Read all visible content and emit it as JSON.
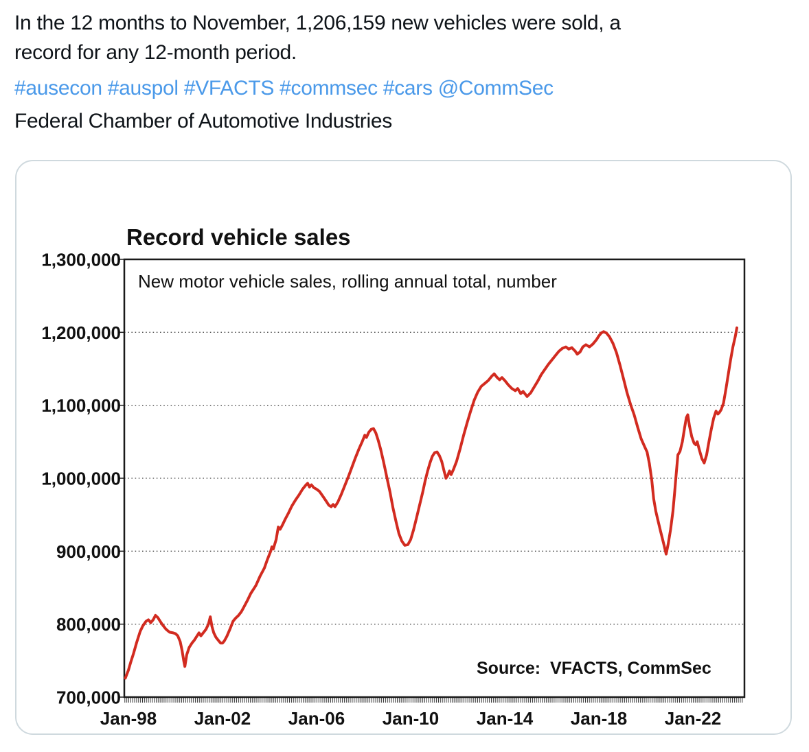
{
  "tweet": {
    "text_color": "#0f1419",
    "link_color": "#4a99e9",
    "lines": [
      "In the 12 months to November, 1,206,159 new vehicles were sold, a",
      "record for any 12-month period.",
      "Federal Chamber of Automotive Industries"
    ],
    "hashtags": [
      "#ausecon",
      "#auspol",
      "#VFACTS",
      "#commsec",
      "#cars",
      "@CommSec"
    ]
  },
  "chart_data": {
    "type": "line",
    "title": "Record vehicle sales",
    "subtitle": "New motor vehicle sales, rolling annual total, number",
    "source": "Source:  VFACTS, CommSec",
    "line_color": "#d22b20",
    "frame_color": "#1a1a1a",
    "grid": "horizontal dotted",
    "legend": "none",
    "ylim": [
      700000,
      1300000
    ],
    "xlim_years": [
      1997.84,
      2023.96
    ],
    "y_ticks": [
      {
        "label": "700,000",
        "value": 700000
      },
      {
        "label": "800,000",
        "value": 800000
      },
      {
        "label": "900,000",
        "value": 900000
      },
      {
        "label": "1,000,000",
        "value": 1000000
      },
      {
        "label": "1,100,000",
        "value": 1100000
      },
      {
        "label": "1,200,000",
        "value": 1200000
      },
      {
        "label": "1,300,000",
        "value": 1300000
      }
    ],
    "x_ticks": [
      {
        "label": "Jan-98",
        "t": 1998
      },
      {
        "label": "Jan-02",
        "t": 2002
      },
      {
        "label": "Jan-06",
        "t": 2006
      },
      {
        "label": "Jan-10",
        "t": 2010
      },
      {
        "label": "Jan-14",
        "t": 2014
      },
      {
        "label": "Jan-18",
        "t": 2018
      },
      {
        "label": "Jan-22",
        "t": 2022
      }
    ],
    "series": [
      {
        "name": "New motor vehicle sales, rolling annual total",
        "final_value": 1206159,
        "points": [
          [
            1997.87,
            726000
          ],
          [
            1998.0,
            737000
          ],
          [
            1998.1,
            748000
          ],
          [
            1998.22,
            760000
          ],
          [
            1998.35,
            775000
          ],
          [
            1998.5,
            790000
          ],
          [
            1998.62,
            798000
          ],
          [
            1998.75,
            804000
          ],
          [
            1998.85,
            806000
          ],
          [
            1998.95,
            802000
          ],
          [
            1999.05,
            806000
          ],
          [
            1999.15,
            812000
          ],
          [
            1999.25,
            809000
          ],
          [
            1999.35,
            804000
          ],
          [
            1999.45,
            799000
          ],
          [
            1999.6,
            793000
          ],
          [
            1999.75,
            789000
          ],
          [
            1999.9,
            788000
          ],
          [
            2000.0,
            787000
          ],
          [
            2000.1,
            784000
          ],
          [
            2000.2,
            776000
          ],
          [
            2000.28,
            764000
          ],
          [
            2000.35,
            750000
          ],
          [
            2000.4,
            742000
          ],
          [
            2000.48,
            758000
          ],
          [
            2000.58,
            768000
          ],
          [
            2000.7,
            774000
          ],
          [
            2000.8,
            778000
          ],
          [
            2000.92,
            784000
          ],
          [
            2001.0,
            788000
          ],
          [
            2001.08,
            784000
          ],
          [
            2001.18,
            788000
          ],
          [
            2001.3,
            793000
          ],
          [
            2001.4,
            800000
          ],
          [
            2001.48,
            810000
          ],
          [
            2001.55,
            797000
          ],
          [
            2001.63,
            788000
          ],
          [
            2001.72,
            782000
          ],
          [
            2001.82,
            778000
          ],
          [
            2001.92,
            774000
          ],
          [
            2002.0,
            774000
          ],
          [
            2002.08,
            777000
          ],
          [
            2002.18,
            783000
          ],
          [
            2002.3,
            792000
          ],
          [
            2002.45,
            804000
          ],
          [
            2002.55,
            808000
          ],
          [
            2002.68,
            812000
          ],
          [
            2002.8,
            817000
          ],
          [
            2002.92,
            824000
          ],
          [
            2003.05,
            832000
          ],
          [
            2003.2,
            842000
          ],
          [
            2003.42,
            853000
          ],
          [
            2003.6,
            866000
          ],
          [
            2003.78,
            877000
          ],
          [
            2003.9,
            888000
          ],
          [
            2004.05,
            900000
          ],
          [
            2004.1,
            906000
          ],
          [
            2004.16,
            903000
          ],
          [
            2004.28,
            916000
          ],
          [
            2004.37,
            933000
          ],
          [
            2004.45,
            930000
          ],
          [
            2004.55,
            936000
          ],
          [
            2004.67,
            944000
          ],
          [
            2004.8,
            952000
          ],
          [
            2004.95,
            962000
          ],
          [
            2005.1,
            970000
          ],
          [
            2005.25,
            977000
          ],
          [
            2005.4,
            985000
          ],
          [
            2005.55,
            991000
          ],
          [
            2005.62,
            993000
          ],
          [
            2005.7,
            988000
          ],
          [
            2005.78,
            991000
          ],
          [
            2005.88,
            987000
          ],
          [
            2006.0,
            985000
          ],
          [
            2006.12,
            982000
          ],
          [
            2006.25,
            976000
          ],
          [
            2006.4,
            969000
          ],
          [
            2006.52,
            963000
          ],
          [
            2006.62,
            961000
          ],
          [
            2006.7,
            964000
          ],
          [
            2006.78,
            961000
          ],
          [
            2006.9,
            967000
          ],
          [
            2007.05,
            978000
          ],
          [
            2007.2,
            990000
          ],
          [
            2007.35,
            1002000
          ],
          [
            2007.5,
            1015000
          ],
          [
            2007.65,
            1028000
          ],
          [
            2007.8,
            1040000
          ],
          [
            2007.95,
            1051000
          ],
          [
            2008.05,
            1059000
          ],
          [
            2008.12,
            1056000
          ],
          [
            2008.22,
            1063000
          ],
          [
            2008.32,
            1067000
          ],
          [
            2008.42,
            1068000
          ],
          [
            2008.52,
            1062000
          ],
          [
            2008.62,
            1052000
          ],
          [
            2008.72,
            1040000
          ],
          [
            2008.85,
            1022000
          ],
          [
            2009.0,
            999000
          ],
          [
            2009.12,
            981000
          ],
          [
            2009.25,
            959000
          ],
          [
            2009.38,
            940000
          ],
          [
            2009.5,
            924000
          ],
          [
            2009.62,
            914000
          ],
          [
            2009.75,
            908000
          ],
          [
            2009.88,
            909000
          ],
          [
            2010.0,
            916000
          ],
          [
            2010.12,
            929000
          ],
          [
            2010.25,
            946000
          ],
          [
            2010.4,
            966000
          ],
          [
            2010.52,
            982000
          ],
          [
            2010.62,
            997000
          ],
          [
            2010.72,
            1010000
          ],
          [
            2010.82,
            1021000
          ],
          [
            2010.92,
            1030000
          ],
          [
            2011.02,
            1035000
          ],
          [
            2011.12,
            1036000
          ],
          [
            2011.22,
            1031000
          ],
          [
            2011.32,
            1023000
          ],
          [
            2011.42,
            1010000
          ],
          [
            2011.5,
            1000000
          ],
          [
            2011.58,
            1004000
          ],
          [
            2011.65,
            1010000
          ],
          [
            2011.72,
            1005000
          ],
          [
            2011.82,
            1012000
          ],
          [
            2011.95,
            1023000
          ],
          [
            2012.1,
            1040000
          ],
          [
            2012.25,
            1059000
          ],
          [
            2012.4,
            1076000
          ],
          [
            2012.55,
            1092000
          ],
          [
            2012.7,
            1107000
          ],
          [
            2012.85,
            1118000
          ],
          [
            2013.0,
            1126000
          ],
          [
            2013.15,
            1130000
          ],
          [
            2013.3,
            1134000
          ],
          [
            2013.45,
            1140000
          ],
          [
            2013.55,
            1143000
          ],
          [
            2013.68,
            1138000
          ],
          [
            2013.78,
            1135000
          ],
          [
            2013.88,
            1138000
          ],
          [
            2014.0,
            1134000
          ],
          [
            2014.15,
            1128000
          ],
          [
            2014.3,
            1123000
          ],
          [
            2014.45,
            1120000
          ],
          [
            2014.55,
            1123000
          ],
          [
            2014.68,
            1116000
          ],
          [
            2014.78,
            1119000
          ],
          [
            2014.95,
            1112000
          ],
          [
            2015.1,
            1117000
          ],
          [
            2015.25,
            1125000
          ],
          [
            2015.4,
            1133000
          ],
          [
            2015.55,
            1142000
          ],
          [
            2015.7,
            1149000
          ],
          [
            2015.85,
            1156000
          ],
          [
            2016.0,
            1162000
          ],
          [
            2016.15,
            1168000
          ],
          [
            2016.3,
            1174000
          ],
          [
            2016.45,
            1178000
          ],
          [
            2016.6,
            1180000
          ],
          [
            2016.72,
            1177000
          ],
          [
            2016.85,
            1179000
          ],
          [
            2017.0,
            1174000
          ],
          [
            2017.08,
            1170000
          ],
          [
            2017.2,
            1173000
          ],
          [
            2017.32,
            1180000
          ],
          [
            2017.45,
            1183000
          ],
          [
            2017.6,
            1180000
          ],
          [
            2017.75,
            1184000
          ],
          [
            2017.9,
            1190000
          ],
          [
            2018.0,
            1195000
          ],
          [
            2018.1,
            1199000
          ],
          [
            2018.2,
            1201000
          ],
          [
            2018.32,
            1199000
          ],
          [
            2018.45,
            1194000
          ],
          [
            2018.6,
            1185000
          ],
          [
            2018.75,
            1172000
          ],
          [
            2018.9,
            1155000
          ],
          [
            2019.05,
            1136000
          ],
          [
            2019.2,
            1117000
          ],
          [
            2019.35,
            1101000
          ],
          [
            2019.5,
            1087000
          ],
          [
            2019.65,
            1070000
          ],
          [
            2019.8,
            1054000
          ],
          [
            2019.95,
            1043000
          ],
          [
            2020.05,
            1036000
          ],
          [
            2020.15,
            1020000
          ],
          [
            2020.25,
            997000
          ],
          [
            2020.33,
            972000
          ],
          [
            2020.42,
            955000
          ],
          [
            2020.5,
            944000
          ],
          [
            2020.62,
            928000
          ],
          [
            2020.75,
            911000
          ],
          [
            2020.86,
            896000
          ],
          [
            2020.95,
            910000
          ],
          [
            2021.05,
            930000
          ],
          [
            2021.15,
            955000
          ],
          [
            2021.22,
            980000
          ],
          [
            2021.3,
            1010000
          ],
          [
            2021.36,
            1032000
          ],
          [
            2021.45,
            1037000
          ],
          [
            2021.55,
            1050000
          ],
          [
            2021.65,
            1070000
          ],
          [
            2021.72,
            1083000
          ],
          [
            2021.78,
            1087000
          ],
          [
            2021.85,
            1072000
          ],
          [
            2021.95,
            1057000
          ],
          [
            2022.05,
            1048000
          ],
          [
            2022.12,
            1046000
          ],
          [
            2022.18,
            1050000
          ],
          [
            2022.28,
            1038000
          ],
          [
            2022.38,
            1027000
          ],
          [
            2022.48,
            1021000
          ],
          [
            2022.58,
            1032000
          ],
          [
            2022.68,
            1050000
          ],
          [
            2022.78,
            1067000
          ],
          [
            2022.88,
            1082000
          ],
          [
            2022.98,
            1092000
          ],
          [
            2023.06,
            1088000
          ],
          [
            2023.12,
            1090000
          ],
          [
            2023.2,
            1094000
          ],
          [
            2023.3,
            1103000
          ],
          [
            2023.4,
            1122000
          ],
          [
            2023.5,
            1142000
          ],
          [
            2023.6,
            1162000
          ],
          [
            2023.7,
            1180000
          ],
          [
            2023.8,
            1194000
          ],
          [
            2023.87,
            1206159
          ]
        ]
      }
    ]
  }
}
